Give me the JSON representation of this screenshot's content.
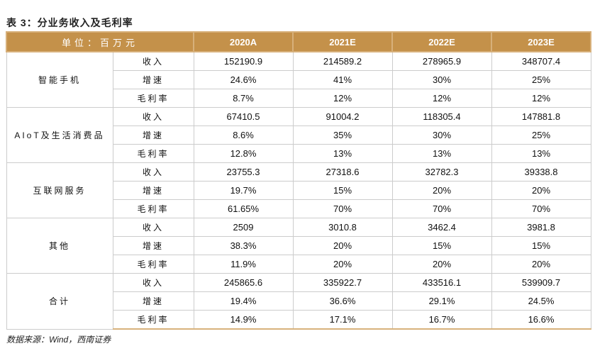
{
  "title": "表 3：分业务收入及毛利率",
  "header": {
    "unit": "单位：百万元",
    "years": [
      "2020A",
      "2021E",
      "2022E",
      "2023E"
    ]
  },
  "groups": [
    {
      "name": "智能手机",
      "rows": [
        {
          "metric": "收入",
          "values": [
            "152190.9",
            "214589.2",
            "278965.9",
            "348707.4"
          ]
        },
        {
          "metric": "增速",
          "values": [
            "24.6%",
            "41%",
            "30%",
            "25%"
          ]
        },
        {
          "metric": "毛利率",
          "values": [
            "8.7%",
            "12%",
            "12%",
            "12%"
          ]
        }
      ]
    },
    {
      "name": "AIoT及生活消费品",
      "rows": [
        {
          "metric": "收入",
          "values": [
            "67410.5",
            "91004.2",
            "118305.4",
            "147881.8"
          ]
        },
        {
          "metric": "增速",
          "values": [
            "8.6%",
            "35%",
            "30%",
            "25%"
          ]
        },
        {
          "metric": "毛利率",
          "values": [
            "12.8%",
            "13%",
            "13%",
            "13%"
          ]
        }
      ]
    },
    {
      "name": "互联网服务",
      "rows": [
        {
          "metric": "收入",
          "values": [
            "23755.3",
            "27318.6",
            "32782.3",
            "39338.8"
          ]
        },
        {
          "metric": "增速",
          "values": [
            "19.7%",
            "15%",
            "20%",
            "20%"
          ]
        },
        {
          "metric": "毛利率",
          "values": [
            "61.65%",
            "70%",
            "70%",
            "70%"
          ]
        }
      ]
    },
    {
      "name": "其他",
      "rows": [
        {
          "metric": "收入",
          "values": [
            "2509",
            "3010.8",
            "3462.4",
            "3981.8"
          ]
        },
        {
          "metric": "增速",
          "values": [
            "38.3%",
            "20%",
            "15%",
            "15%"
          ]
        },
        {
          "metric": "毛利率",
          "values": [
            "11.9%",
            "20%",
            "20%",
            "20%"
          ]
        }
      ]
    },
    {
      "name": "合计",
      "rows": [
        {
          "metric": "收入",
          "values": [
            "245865.6",
            "335922.7",
            "433516.1",
            "539909.7"
          ]
        },
        {
          "metric": "增速",
          "values": [
            "19.4%",
            "36.6%",
            "29.1%",
            "24.5%"
          ]
        },
        {
          "metric": "毛利率",
          "values": [
            "14.9%",
            "17.1%",
            "16.7%",
            "16.6%"
          ]
        }
      ]
    }
  ],
  "source": "数据来源：Wind，西南证券"
}
